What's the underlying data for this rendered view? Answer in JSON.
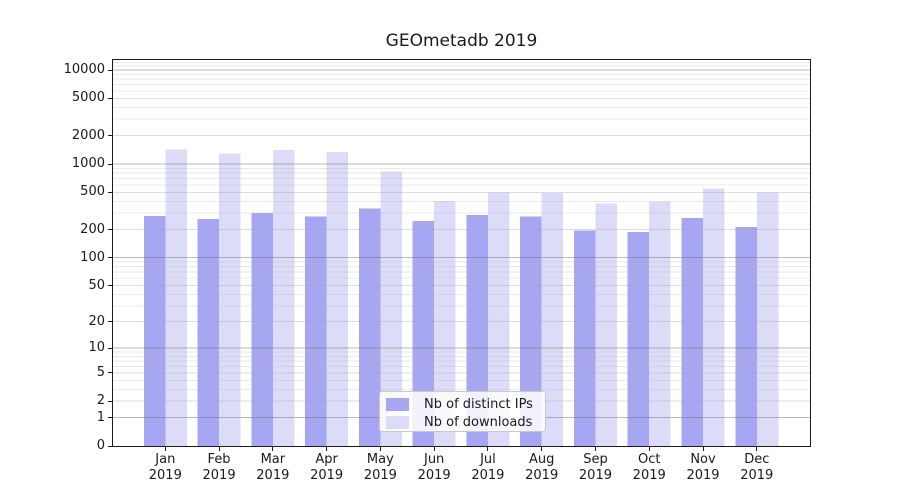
{
  "chart_data": {
    "type": "bar",
    "title": "GEOmetadb 2019",
    "categories": [
      "Jan",
      "Feb",
      "Mar",
      "Apr",
      "May",
      "Jun",
      "Jul",
      "Aug",
      "Sep",
      "Oct",
      "Nov",
      "Dec"
    ],
    "x_tick_second_line": "2019",
    "xlabel": "",
    "ylabel": "",
    "yscale": "log1p",
    "ylim": [
      0,
      12800
    ],
    "yticks_labeled": [
      0,
      1,
      2,
      5,
      10,
      20,
      50,
      100,
      200,
      500,
      1000,
      2000,
      5000,
      10000
    ],
    "grid": "major-and-minor-horizontal",
    "series": [
      {
        "name": "Nb of distinct IPs",
        "color": "#a6a6f2",
        "values": [
          280,
          258,
          300,
          275,
          335,
          248,
          287,
          275,
          196,
          188,
          265,
          212
        ]
      },
      {
        "name": "Nb of downloads",
        "color": "#dcdcf8",
        "values": [
          1430,
          1300,
          1410,
          1340,
          830,
          405,
          500,
          490,
          378,
          400,
          550,
          495
        ]
      }
    ],
    "legend": {
      "position": "lower-center",
      "labels": [
        "Nb of distinct IPs",
        "Nb of downloads"
      ]
    }
  },
  "colors": {
    "background": "#ffffff",
    "spine": "#1a1a1a",
    "text": "#1a1a1a",
    "grid_major": "rgba(115,115,115,0.50)",
    "grid_sub": "rgba(165,165,165,0.38)",
    "grid_minor": "rgba(182,182,182,0.30)",
    "legend_border": "#c9c9c9"
  }
}
